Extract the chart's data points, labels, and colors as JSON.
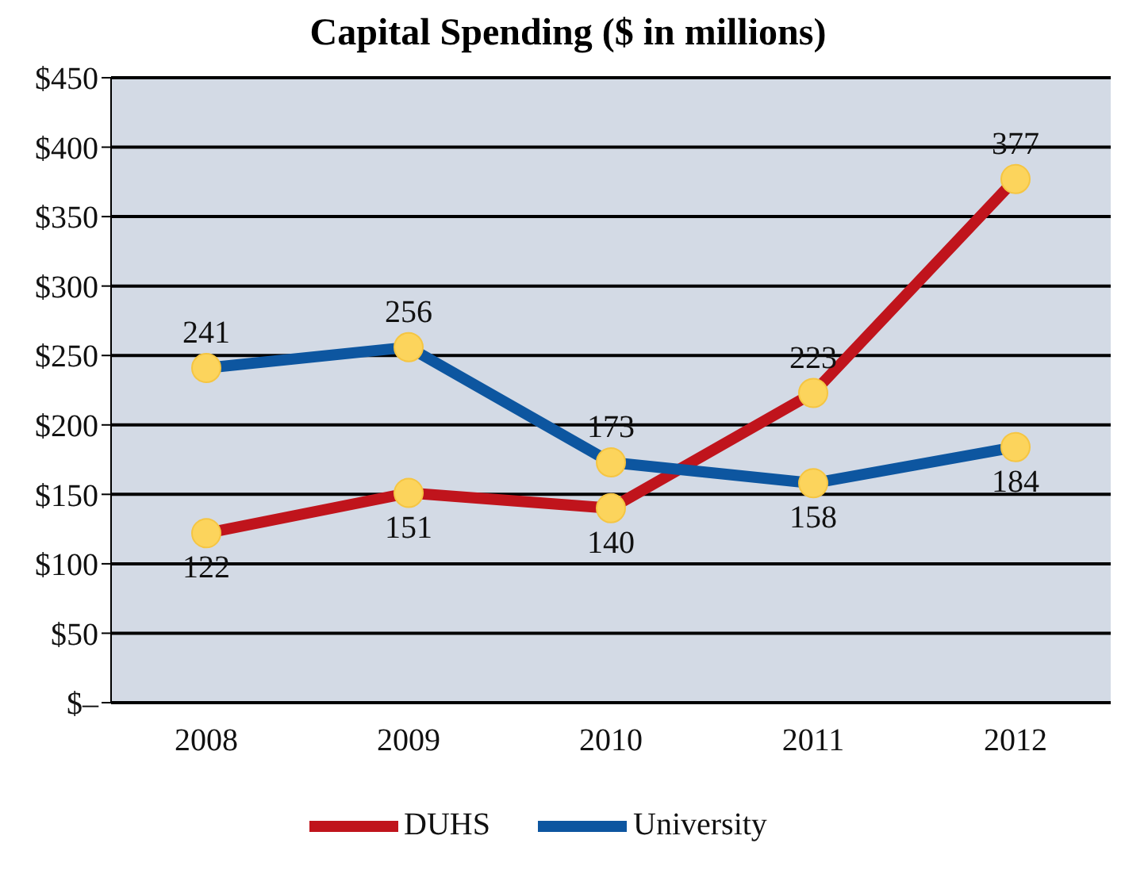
{
  "chart_data": {
    "type": "line",
    "title": "Capital Spending ($ in millions)",
    "categories": [
      "2008",
      "2009",
      "2010",
      "2011",
      "2012"
    ],
    "series": [
      {
        "name": "DUHS",
        "color": "#c0141c",
        "values": [
          122,
          151,
          140,
          223,
          377
        ]
      },
      {
        "name": "University",
        "color": "#0d56a0",
        "values": [
          241,
          256,
          173,
          158,
          184
        ]
      }
    ],
    "ylim": [
      0,
      450
    ],
    "yticks": [
      {
        "value": 0,
        "label": "$–"
      },
      {
        "value": 50,
        "label": "$50"
      },
      {
        "value": 100,
        "label": "$100"
      },
      {
        "value": 150,
        "label": "$150"
      },
      {
        "value": 200,
        "label": "$200"
      },
      {
        "value": 250,
        "label": "$250"
      },
      {
        "value": 300,
        "label": "$300"
      },
      {
        "value": 350,
        "label": "$350"
      },
      {
        "value": 400,
        "label": "$400"
      },
      {
        "value": 450,
        "label": "$450"
      }
    ],
    "grid": "y",
    "legend": "bottom",
    "marker": "circle",
    "line_style": "solid",
    "data_labels": true
  }
}
